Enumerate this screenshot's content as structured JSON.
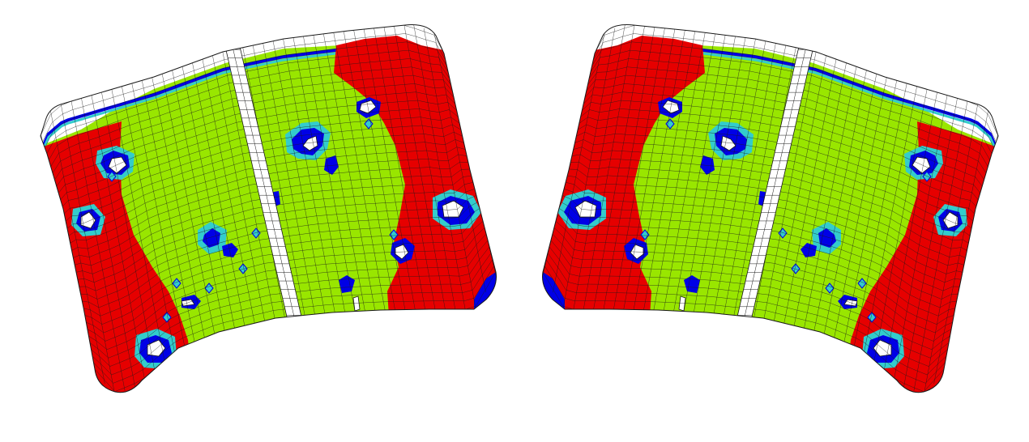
{
  "colors": {
    "background": "#ffffff",
    "safe": "#99e600",
    "crack": "#e60000",
    "wrinkle": "#0000e6",
    "wrinkle_tendency": "#33cccc",
    "insufficient_stretch": "#ffffff",
    "mesh_line": "#1a1a1a"
  },
  "panels": [
    {
      "id": "left-panel",
      "mirrored": false
    },
    {
      "id": "right-panel",
      "mirrored": true
    }
  ]
}
